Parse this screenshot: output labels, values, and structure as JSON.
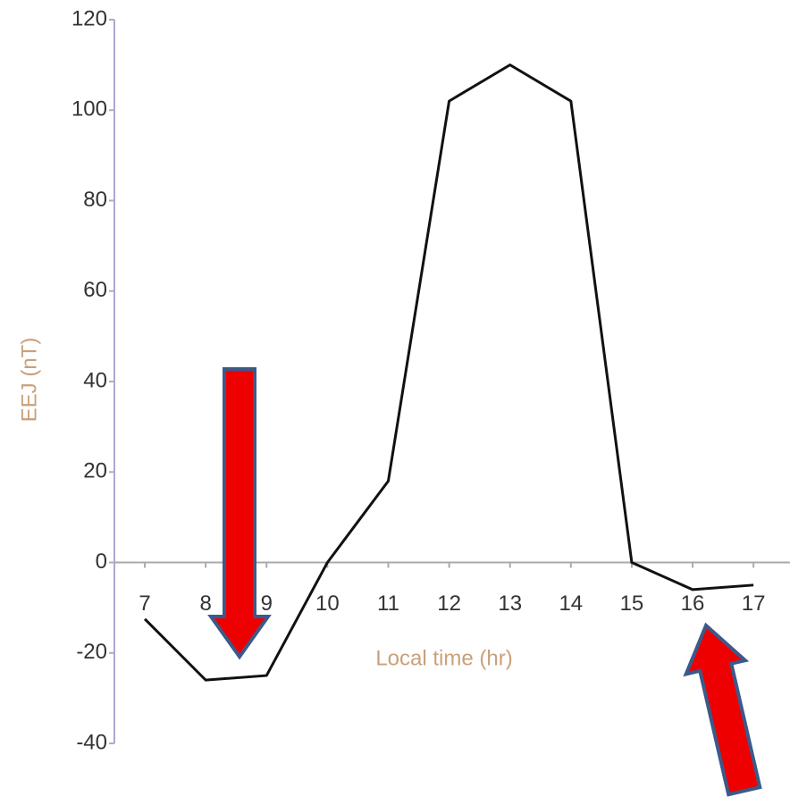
{
  "chart_data": {
    "type": "line",
    "x": [
      7,
      8,
      9,
      10,
      11,
      12,
      13,
      14,
      15,
      16,
      17
    ],
    "series": [
      {
        "name": "EEJ",
        "color": "#111111",
        "values": [
          -12.5,
          -26,
          -25,
          0,
          18,
          102,
          110,
          102,
          0,
          -6,
          -5
        ]
      }
    ],
    "xlabel": "Local time (hr)",
    "ylabel": "EEJ (nT)",
    "xlim": [
      6.5,
      17.6
    ],
    "xticks": [
      7,
      8,
      9,
      10,
      11,
      12,
      13,
      14,
      15,
      16,
      17
    ],
    "ylim": [
      -40,
      120
    ],
    "yticks": [
      -40,
      -20,
      0,
      20,
      40,
      60,
      80,
      100,
      120
    ],
    "grid": false
  }
}
